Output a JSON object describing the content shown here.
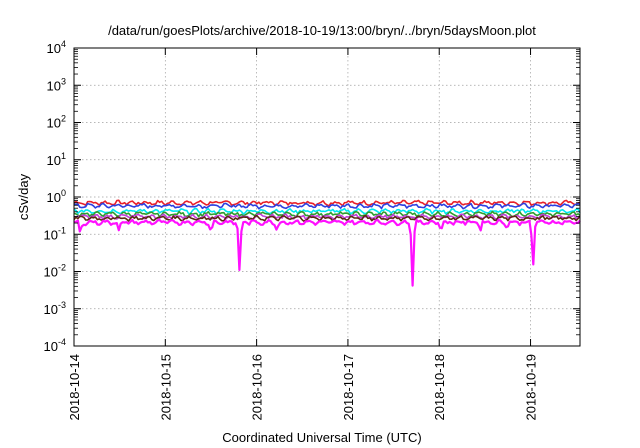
{
  "chart_data": {
    "type": "line",
    "title": "/data/run/goesPlots/archive/2018-10-19/13:00/bryn/../bryn/5daysMoon.plot",
    "xlabel": "Coordinated Universal Time (UTC)",
    "ylabel": "cSv/day",
    "yscale": "log",
    "ylim": [
      0.0001,
      10000
    ],
    "y_ticks": [
      {
        "value": 0.0001,
        "mantissa": "10",
        "exp": "-4"
      },
      {
        "value": 0.001,
        "mantissa": "10",
        "exp": "-3"
      },
      {
        "value": 0.01,
        "mantissa": "10",
        "exp": "-2"
      },
      {
        "value": 0.1,
        "mantissa": "10",
        "exp": "-1"
      },
      {
        "value": 1,
        "mantissa": "10",
        "exp": "0"
      },
      {
        "value": 10,
        "mantissa": "10",
        "exp": "1"
      },
      {
        "value": 100,
        "mantissa": "10",
        "exp": "2"
      },
      {
        "value": 1000,
        "mantissa": "10",
        "exp": "3"
      },
      {
        "value": 10000,
        "mantissa": "10",
        "exp": "4"
      }
    ],
    "xlim": [
      "2018-10-14",
      "2018-10-19 13:00"
    ],
    "x_ticks": [
      "2018-10-14",
      "2018-10-15",
      "2018-10-16",
      "2018-10-17",
      "2018-10-18",
      "2018-10-19"
    ],
    "grid": true,
    "series": [
      {
        "color": "#e8202a",
        "base": 0.7
      },
      {
        "color": "#2d3fe0",
        "base": 0.58
      },
      {
        "color": "#00e8f0",
        "base": 0.42
      },
      {
        "color": "#2e9e2e",
        "base": 0.35
      },
      {
        "color": "#c03fd8",
        "base": 0.3
      },
      {
        "color": "#5c2a12",
        "base": 0.27
      },
      {
        "color": "#ff10ff",
        "base": 0.21,
        "dips": [
          {
            "x": "2018-10-15 19:30",
            "value": 0.01
          },
          {
            "x": "2018-10-17 17:00",
            "value": 0.004
          },
          {
            "x": "2018-10-19 00:40",
            "value": 0.012
          },
          {
            "x": "2018-10-14 01:40",
            "value": 0.1
          },
          {
            "x": "2018-10-14 11:50",
            "value": 0.12
          },
          {
            "x": "2018-10-15 12:00",
            "value": 0.11
          },
          {
            "x": "2018-10-16 05:20",
            "value": 0.12
          },
          {
            "x": "2018-10-18 00:30",
            "value": 0.12
          },
          {
            "x": "2018-10-18 10:50",
            "value": 0.12
          },
          {
            "x": "2018-10-18 17:50",
            "value": 0.14
          }
        ]
      }
    ]
  }
}
